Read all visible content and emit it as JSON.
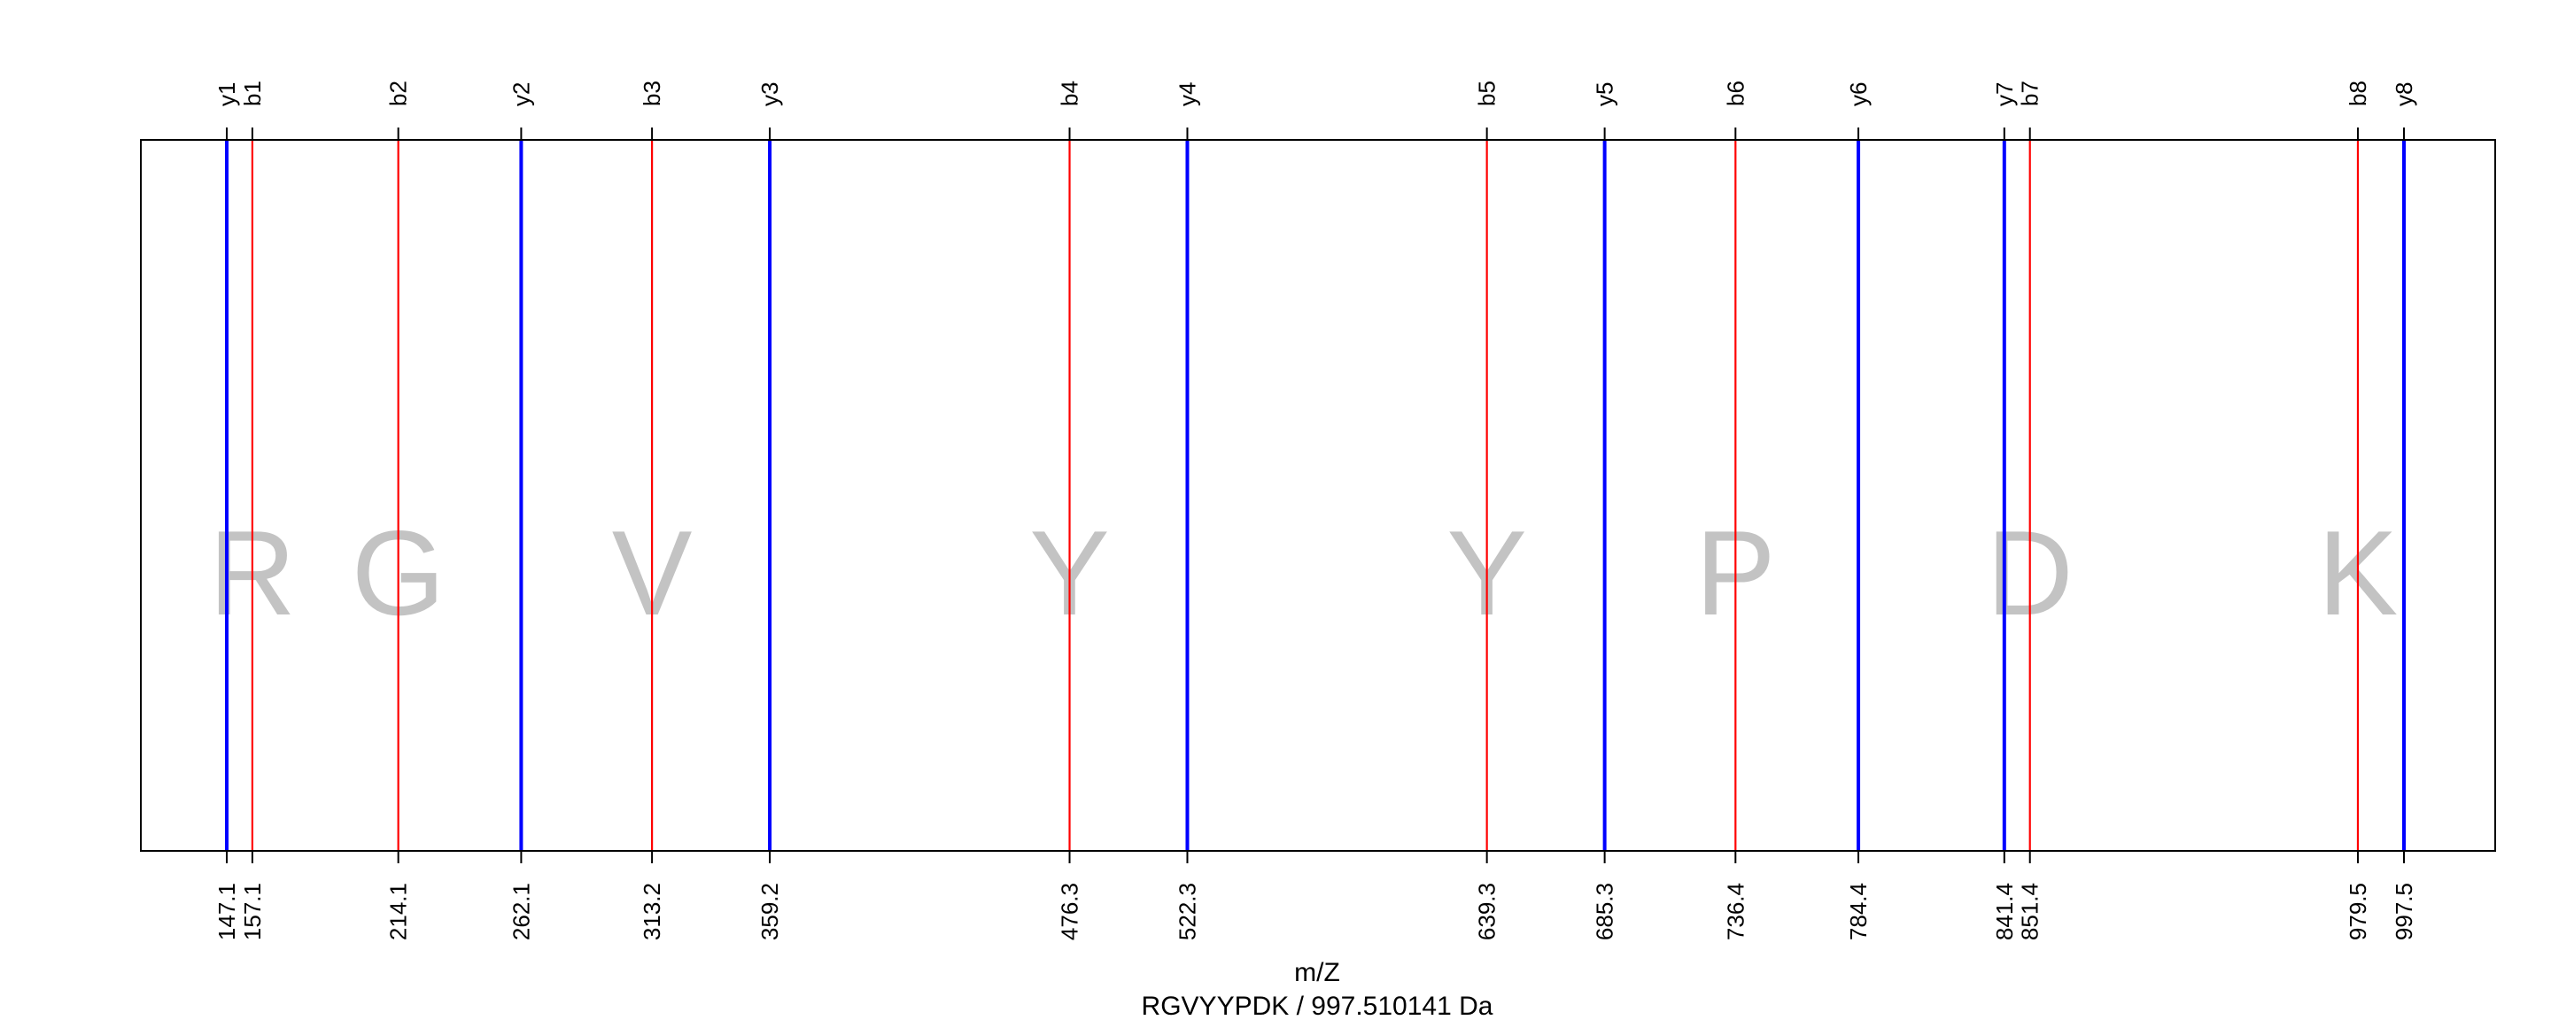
{
  "chart_data": {
    "type": "line",
    "title": "",
    "xlabel": "m/Z",
    "ylabel": "",
    "caption": "RGVYYPDK / 997.510141 Da",
    "xlim": [
      135.0,
      1025.0
    ],
    "grid": false,
    "legend": "none",
    "peptide": "RGVYYPDK",
    "precursor_mass_da": 997.510141,
    "series": [
      {
        "ion_type": "b",
        "color": "#ff0000",
        "ions": [
          {
            "label": "b1",
            "mz": 157.1,
            "mz_label": "157.1"
          },
          {
            "label": "b2",
            "mz": 214.1,
            "mz_label": "214.1"
          },
          {
            "label": "b3",
            "mz": 313.2,
            "mz_label": "313.2"
          },
          {
            "label": "b4",
            "mz": 476.3,
            "mz_label": "476.3"
          },
          {
            "label": "b5",
            "mz": 639.3,
            "mz_label": "639.3"
          },
          {
            "label": "b6",
            "mz": 736.4,
            "mz_label": "736.4"
          },
          {
            "label": "b7",
            "mz": 851.4,
            "mz_label": "851.4"
          },
          {
            "label": "b8",
            "mz": 979.5,
            "mz_label": "979.5"
          }
        ]
      },
      {
        "ion_type": "y",
        "color": "#0000ff",
        "ions": [
          {
            "label": "y1",
            "mz": 147.1,
            "mz_label": "147.1"
          },
          {
            "label": "y2",
            "mz": 262.1,
            "mz_label": "262.1"
          },
          {
            "label": "y3",
            "mz": 359.2,
            "mz_label": "359.2"
          },
          {
            "label": "y4",
            "mz": 522.3,
            "mz_label": "522.3"
          },
          {
            "label": "y5",
            "mz": 685.3,
            "mz_label": "685.3"
          },
          {
            "label": "y6",
            "mz": 784.4,
            "mz_label": "784.4"
          },
          {
            "label": "y7",
            "mz": 841.4,
            "mz_label": "841.4"
          },
          {
            "label": "y8",
            "mz": 997.5,
            "mz_label": "997.5"
          }
        ]
      }
    ],
    "residues": [
      {
        "letter": "R",
        "mz": 157.1
      },
      {
        "letter": "G",
        "mz": 214.1
      },
      {
        "letter": "V",
        "mz": 313.2
      },
      {
        "letter": "Y",
        "mz": 476.3
      },
      {
        "letter": "Y",
        "mz": 639.3
      },
      {
        "letter": "P",
        "mz": 736.4
      },
      {
        "letter": "D",
        "mz": 851.4
      },
      {
        "letter": "K",
        "mz": 979.5
      }
    ]
  }
}
